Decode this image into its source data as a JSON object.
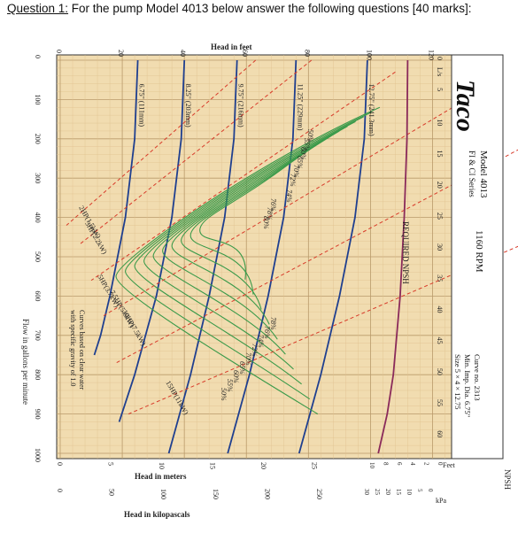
{
  "question": {
    "number": "Question 1:",
    "text": " For the pump Model 4013 below answer the following questions [40 marks]:"
  },
  "chart_data": {
    "type": "line",
    "title": "",
    "brand": "Taco",
    "model": "Model 4013",
    "series_label": "FI & CI Series",
    "rpm": "1160 RPM",
    "curve_info": [
      "Curve no. 2313",
      "Min. Imp. Dia. 6.75\"",
      "Size 5 × 4 × 12.75"
    ],
    "note": [
      "Curves based on clear water",
      "with specific gravity of 1.0"
    ],
    "xlabel": "Flow in gallons per minute",
    "xlabel_ls": "L/s",
    "ylabel_feet": "Head in feet",
    "ylabel_meters": "Head in meters",
    "ylabel_kpa": "Head in kilopascals",
    "npsh_label": "REQUIRED NPSH",
    "npsh_axis_title": "NPSH",
    "npsh_feet_unit": "Feet",
    "npsh_kpa_unit": "kPa",
    "x_gpm_ticks": [
      0,
      100,
      200,
      300,
      400,
      500,
      600,
      700,
      800,
      900,
      1000
    ],
    "x_ls_ticks": [
      0,
      5,
      10,
      15,
      20,
      25,
      30,
      35,
      40,
      45,
      50,
      55,
      60
    ],
    "y_feet_ticks": [
      0,
      20,
      40,
      60,
      80,
      100,
      120
    ],
    "y_meter_ticks": [
      0,
      5,
      10,
      15,
      20,
      25
    ],
    "y_kpa_ticks": [
      0,
      50,
      100,
      150,
      200,
      250
    ],
    "npsh_feet_ticks": [
      0,
      2,
      4,
      6,
      8,
      10
    ],
    "npsh_kpa_ticks": [
      0,
      5,
      10,
      15,
      20,
      25,
      30
    ],
    "xlim": [
      0,
      1000
    ],
    "ylim": [
      0,
      125
    ],
    "impeller_curves": [
      {
        "label": "12.75\" (241.3mm)",
        "points": [
          [
            0,
            99
          ],
          [
            200,
            98
          ],
          [
            400,
            95
          ],
          [
            600,
            90
          ],
          [
            800,
            84
          ],
          [
            1000,
            77
          ]
        ]
      },
      {
        "label": "11.25\" (229mm)",
        "points": [
          [
            0,
            76
          ],
          [
            200,
            75
          ],
          [
            400,
            72
          ],
          [
            600,
            67
          ],
          [
            800,
            61
          ],
          [
            1000,
            54
          ]
        ]
      },
      {
        "label": "9.75\" (216mm)",
        "points": [
          [
            0,
            57
          ],
          [
            200,
            56
          ],
          [
            400,
            53
          ],
          [
            600,
            48
          ],
          [
            800,
            42
          ],
          [
            1000,
            35
          ]
        ]
      },
      {
        "label": "8.25\" (203mm)",
        "points": [
          [
            0,
            40
          ],
          [
            200,
            39
          ],
          [
            400,
            36
          ],
          [
            600,
            31
          ],
          [
            800,
            24
          ],
          [
            920,
            19
          ]
        ]
      },
      {
        "label": "6.75\" (111mm)",
        "points": [
          [
            0,
            25
          ],
          [
            200,
            24
          ],
          [
            400,
            21
          ],
          [
            600,
            16
          ],
          [
            700,
            13
          ],
          [
            750,
            11
          ]
        ]
      }
    ],
    "efficiency_labels_left": [
      "50%",
      "55%",
      "60%",
      "65%",
      "70%",
      "72%",
      "74%",
      "76%",
      "78%",
      "80%"
    ],
    "efficiency_labels_right": [
      "78%",
      "76%",
      "74%",
      "72%",
      "70%",
      "65%",
      "60%",
      "55%",
      "50%"
    ],
    "horsepower_labels": [
      "2HP(1.5kW)",
      "3HP(2.2kW)",
      "5HP(3.7kW)",
      "7.5HP(5.6kW)",
      "10HP(7.5kW)",
      "15HP(11kW)"
    ],
    "npsh_curve": [
      [
        0,
        4.5
      ],
      [
        200,
        4.6
      ],
      [
        400,
        5.0
      ],
      [
        600,
        5.6
      ],
      [
        800,
        6.6
      ],
      [
        900,
        7.5
      ],
      [
        1000,
        8.8
      ]
    ],
    "grid": true
  }
}
